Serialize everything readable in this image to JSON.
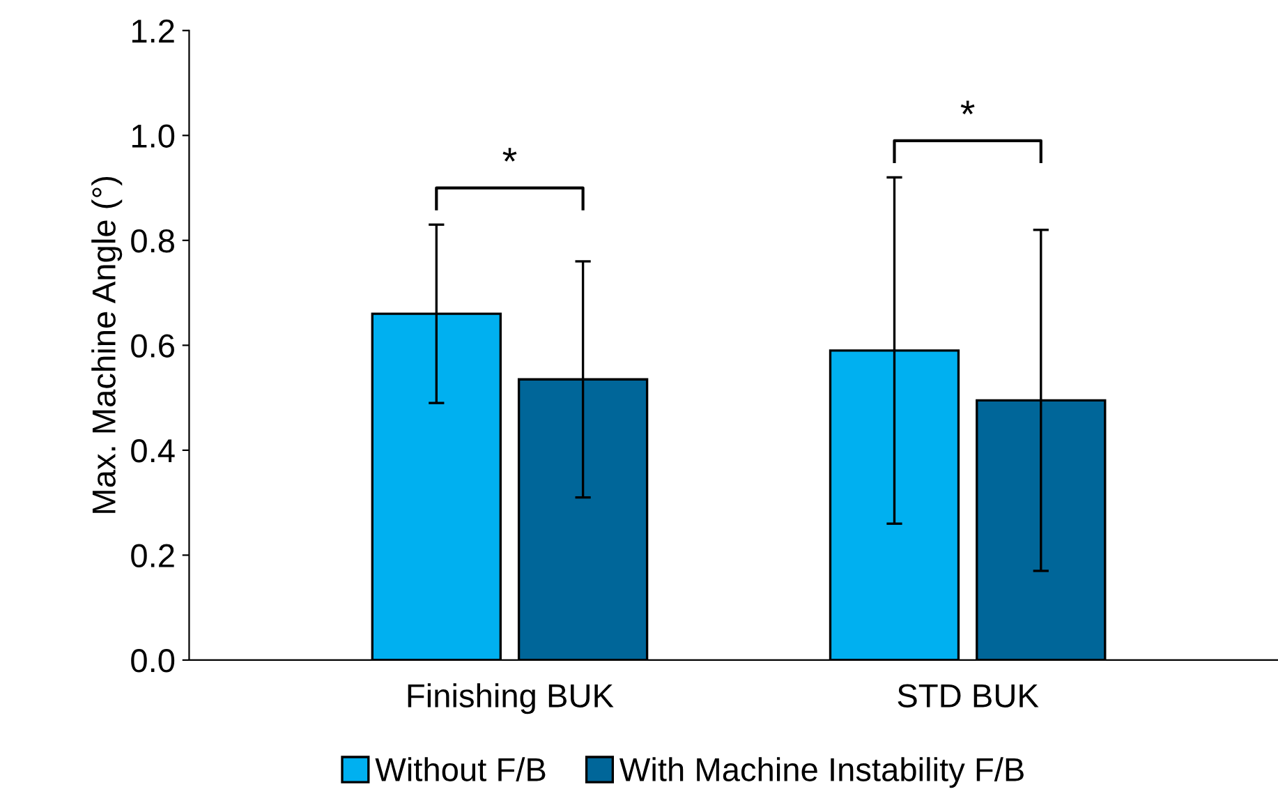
{
  "chart_data": {
    "type": "bar",
    "ylabel": "Max. Machine Angle (°)",
    "categories": [
      "Finishing BUK",
      "STD BUK"
    ],
    "series": [
      {
        "name": "Without F/B",
        "color": "#00b0f0",
        "values": [
          0.66,
          0.59
        ],
        "errors": [
          0.17,
          0.33
        ]
      },
      {
        "name": "With Machine Instability F/B",
        "color": "#006699",
        "values": [
          0.535,
          0.495
        ],
        "errors": [
          0.225,
          0.325
        ]
      }
    ],
    "ylim": [
      0,
      1.2
    ],
    "yticks": [
      {
        "value": 0,
        "label": "0.0"
      },
      {
        "value": 0.2,
        "label": "0.2"
      },
      {
        "value": 0.4,
        "label": "0.4"
      },
      {
        "value": 0.6,
        "label": "0.6"
      },
      {
        "value": 0.8,
        "label": "0.8"
      },
      {
        "value": 1.0,
        "label": "1.0"
      },
      {
        "value": 1.2,
        "label": "1.2"
      }
    ],
    "grid": false,
    "legend": "bottom",
    "annotations": [
      "*",
      "*"
    ]
  }
}
